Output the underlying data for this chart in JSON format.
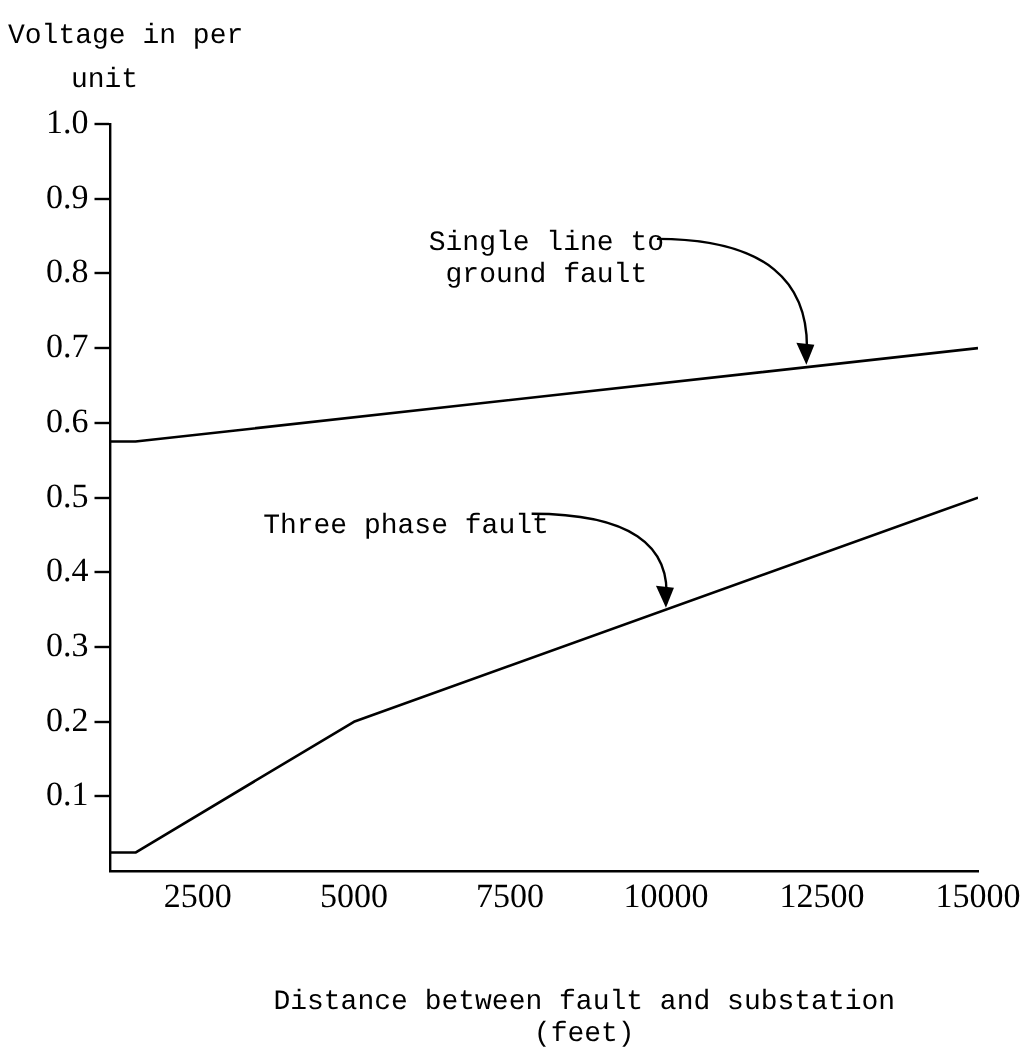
{
  "chart_data": {
    "type": "line",
    "xlabel": "Distance between fault and substation (feet)",
    "ylabel": "Voltage in per unit",
    "series": [
      {
        "x": [
          1100,
          1500,
          15000
        ],
        "values": [
          0.575,
          0.575,
          0.7
        ],
        "color": "#000000"
      },
      {
        "x": [
          1100,
          1500,
          5000,
          15000
        ],
        "values": [
          0.025,
          0.025,
          0.2,
          0.5
        ],
        "color": "#000000"
      }
    ],
    "xlim": [
      1100,
      15000
    ],
    "xticks": [
      2500,
      5000,
      7500,
      10000,
      12500,
      15000
    ],
    "ylim": [
      0,
      1
    ],
    "yticks": [
      0.1,
      0.2,
      0.3,
      0.4,
      0.5,
      0.6,
      0.7,
      0.8,
      0.9,
      {
        "value": 1,
        "label": "1.0"
      }
    ],
    "annotations": [
      {
        "text": "Single line to ground fault",
        "x": 12250,
        "y": 0.675
      },
      {
        "text": "Three phase fault",
        "x": 10000,
        "y": 0.35
      }
    ],
    "grid": false,
    "legend": false,
    "marker": "none",
    "line_style": "solid"
  }
}
